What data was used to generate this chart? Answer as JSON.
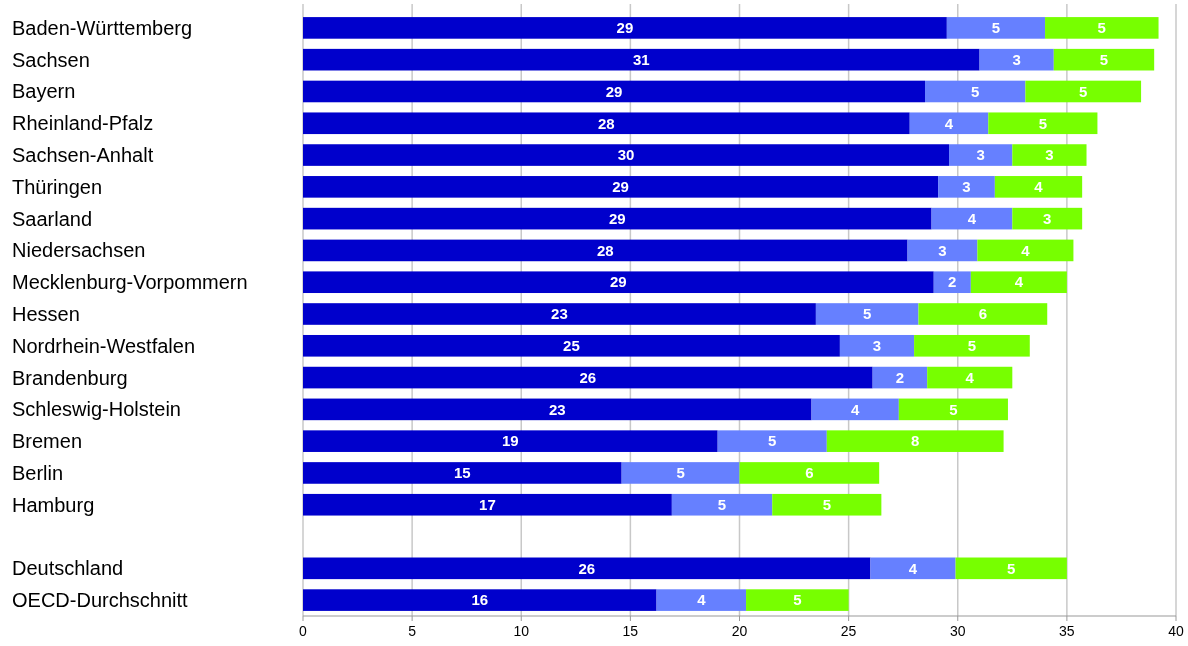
{
  "chart_data": {
    "type": "bar",
    "orientation": "horizontal",
    "stacked": true,
    "categories": [
      "Baden-Württemberg",
      "Sachsen",
      "Bayern",
      "Rheinland-Pfalz",
      "Sachsen-Anhalt",
      "Thüringen",
      "Saarland",
      "Niedersachsen",
      "Mecklenburg-Vorpommern",
      "Hessen",
      "Nordrhein-Westfalen",
      "Brandenburg",
      "Schleswig-Holstein",
      "Bremen",
      "Berlin",
      "Hamburg",
      null,
      "Deutschland",
      "OECD-Durchschnitt"
    ],
    "series": [
      {
        "color": "#0000cc",
        "values": [
          29.5,
          31.0,
          28.5,
          27.8,
          29.6,
          29.1,
          28.8,
          27.7,
          28.9,
          23.5,
          24.6,
          26.1,
          23.3,
          19.0,
          14.6,
          16.9,
          null,
          26.0,
          16.2
        ],
        "value_labels": [
          "29",
          "31",
          "29",
          "28",
          "30",
          "29",
          "29",
          "28",
          "29",
          "23",
          "25",
          "26",
          "23",
          "19",
          "15",
          "17",
          null,
          "26",
          "16"
        ]
      },
      {
        "color": "#6680ff",
        "values": [
          4.5,
          3.4,
          4.6,
          3.6,
          2.9,
          2.6,
          3.7,
          3.2,
          1.7,
          4.7,
          3.4,
          2.5,
          4.0,
          5.0,
          5.4,
          4.6,
          null,
          3.9,
          4.1
        ],
        "value_labels": [
          "5",
          "3",
          "5",
          "4",
          "3",
          "3",
          "4",
          "3",
          "2",
          "5",
          "3",
          "2",
          "4",
          "5",
          "5",
          "5",
          null,
          "4",
          "4"
        ]
      },
      {
        "color": "#77ff00",
        "values": [
          5.2,
          4.6,
          5.3,
          5.0,
          3.4,
          4.0,
          3.2,
          4.4,
          4.4,
          5.9,
          5.3,
          3.9,
          5.0,
          8.1,
          6.4,
          5.0,
          null,
          5.1,
          4.7
        ],
        "value_labels": [
          "5",
          "5",
          "5",
          "5",
          "3",
          "4",
          "3",
          "4",
          "4",
          "6",
          "5",
          "4",
          "5",
          "8",
          "6",
          "5",
          null,
          "5",
          "5"
        ]
      }
    ],
    "xlim": [
      0,
      40
    ],
    "xticks": [
      0,
      5,
      10,
      15,
      20,
      25,
      30,
      35,
      40
    ],
    "grid": "x"
  }
}
